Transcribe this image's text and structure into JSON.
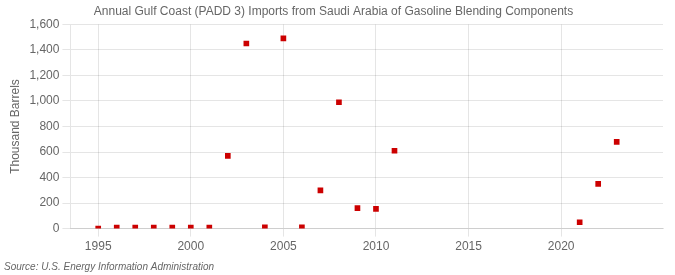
{
  "chart_data": {
    "type": "scatter",
    "title": "Annual Gulf Coast (PADD 3) Imports from Saudi Arabia of Gasoline Blending Components",
    "y_label": "Thousand Barrels",
    "annotations": [
      "Source: U.S. Energy Information Administration"
    ],
    "series": [
      {
        "color": "#cc0000",
        "marker": "square",
        "x": [
          1995,
          1996,
          1997,
          1998,
          1999,
          2000,
          2001,
          2002,
          2003,
          2004,
          2005,
          2006,
          2007,
          2008,
          2009,
          2010,
          2011,
          2022,
          2023
        ],
        "values": [
          0,
          8,
          8,
          8,
          8,
          8,
          8,
          570,
          1450,
          10,
          1490,
          10,
          300,
          990,
          160,
          155,
          610,
          350,
          680
        ]
      },
      {
        "color": "#cc0000",
        "marker": "square",
        "x": [
          2021
        ],
        "values": [
          50
        ]
      }
    ],
    "xlim": [
      1993.5,
      2025.5
    ],
    "xticks": [
      1995,
      2000,
      2005,
      2010,
      2015,
      2020
    ],
    "ylim": [
      0,
      1600
    ],
    "yticks": [
      0,
      200,
      400,
      600,
      800,
      {
        "value": 1000,
        "label": "1,000"
      },
      {
        "value": 1200,
        "label": "1,200"
      },
      {
        "value": 1400,
        "label": "1,400"
      },
      {
        "value": 1600,
        "label": "1,600"
      }
    ],
    "grid": true
  }
}
